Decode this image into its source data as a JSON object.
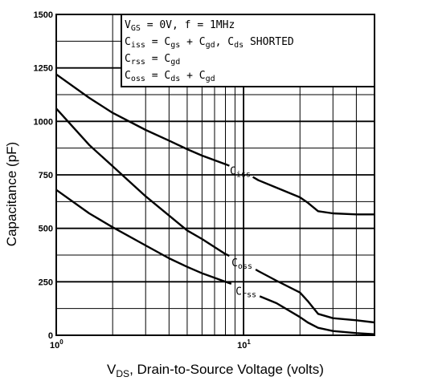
{
  "chart_data": {
    "type": "line",
    "xlabel": {
      "main": "V",
      "sub": "DS",
      "rest": ", Drain-to-Source Voltage (volts)"
    },
    "ylabel": "Capacitance (pF)",
    "x_scale": "log",
    "xlim": [
      1,
      50
    ],
    "ylim": [
      0,
      1500
    ],
    "y_ticks": [
      "0",
      "250",
      "500",
      "750",
      "1000",
      "1250",
      "1500"
    ],
    "x_ticks": [
      {
        "base": "10",
        "exp": "0"
      },
      {
        "base": "10",
        "exp": "1"
      }
    ],
    "grid": true,
    "legend_lines": [
      {
        "parts": [
          [
            "V",
            ""
          ],
          [
            "GS",
            "sub"
          ],
          [
            " = 0V,  f = 1MHz",
            ""
          ]
        ]
      },
      {
        "parts": [
          [
            "C",
            ""
          ],
          [
            "iss",
            "sub"
          ],
          [
            " = C",
            ""
          ],
          [
            "gs",
            "sub"
          ],
          [
            " + C",
            ""
          ],
          [
            "gd",
            "sub"
          ],
          [
            ",  C",
            ""
          ],
          [
            "ds",
            "sub"
          ],
          [
            " SHORTED",
            ""
          ]
        ]
      },
      {
        "parts": [
          [
            "C",
            ""
          ],
          [
            "rss",
            "sub"
          ],
          [
            " = C",
            ""
          ],
          [
            "gd",
            "sub"
          ]
        ]
      },
      {
        "parts": [
          [
            "C",
            ""
          ],
          [
            "oss",
            "sub"
          ],
          [
            " = C",
            ""
          ],
          [
            "ds",
            "sub"
          ],
          [
            " + C",
            ""
          ],
          [
            "gd",
            "sub"
          ]
        ]
      }
    ],
    "legend_position": "top-right",
    "series": [
      {
        "name": "iss",
        "x": [
          1,
          1.5,
          2,
          3,
          4,
          5,
          6,
          8,
          10,
          12,
          15,
          20,
          22,
          25,
          30,
          40,
          50
        ],
        "y": [
          1220,
          1110,
          1040,
          960,
          910,
          870,
          840,
          800,
          765,
          725,
          690,
          645,
          620,
          580,
          570,
          565,
          565
        ]
      },
      {
        "name": "oss",
        "x": [
          1,
          1.5,
          2,
          3,
          4,
          5,
          6,
          8,
          10,
          12,
          15,
          20,
          22,
          25,
          30,
          40,
          50
        ],
        "y": [
          1060,
          890,
          790,
          650,
          560,
          490,
          450,
          380,
          340,
          300,
          255,
          200,
          160,
          100,
          80,
          70,
          60
        ]
      },
      {
        "name": "rss",
        "x": [
          1,
          1.5,
          2,
          3,
          4,
          5,
          6,
          8,
          10,
          12,
          15,
          20,
          22,
          25,
          30,
          40,
          50
        ],
        "y": [
          680,
          570,
          505,
          420,
          360,
          320,
          290,
          250,
          220,
          185,
          150,
          85,
          60,
          35,
          20,
          10,
          5
        ]
      }
    ],
    "curve_labels": [
      {
        "series": "iss",
        "main": "C",
        "sub": "iss"
      },
      {
        "series": "oss",
        "main": "C",
        "sub": "oss"
      },
      {
        "series": "rss",
        "main": "C",
        "sub": "rss"
      }
    ]
  }
}
